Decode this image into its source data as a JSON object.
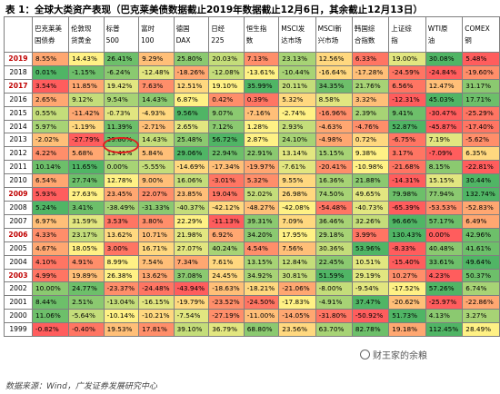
{
  "caption": "表 1：全球大类资产表现（巴克莱美债数据截止2019年数据截止12月6日，其余截止12月13日）",
  "source_note": "数据来源：Wind，广发证券发展研究中心",
  "watermark": "财王家的余粮",
  "columns": [
    {
      "id": "bbg",
      "lines": [
        "巴克莱美",
        "国债券"
      ]
    },
    {
      "id": "lehman",
      "lines": [
        "伦敦现",
        "货黄金"
      ]
    },
    {
      "id": "sp500",
      "lines": [
        "标普",
        "500"
      ]
    },
    {
      "id": "nasdaq100",
      "lines": [
        "富时",
        "100"
      ]
    },
    {
      "id": "dax",
      "lines": [
        "德国",
        "DAX"
      ]
    },
    {
      "id": "nikkei",
      "lines": [
        "日经",
        "225"
      ]
    },
    {
      "id": "hsi",
      "lines": [
        "恒生指",
        "数"
      ]
    },
    {
      "id": "msci_em",
      "lines": [
        "MSCI发",
        "达市场"
      ]
    },
    {
      "id": "msci_new",
      "lines": [
        "MSCI新",
        "兴市场"
      ]
    },
    {
      "id": "kospi",
      "lines": [
        "韩国综",
        "合指数"
      ]
    },
    {
      "id": "sse",
      "lines": [
        "上证综",
        "指"
      ]
    },
    {
      "id": "wti",
      "lines": [
        "WTI原",
        "油"
      ]
    },
    {
      "id": "comex",
      "lines": [
        "COMEX",
        "铜"
      ]
    }
  ],
  "rows": [
    {
      "year": "2019",
      "red": true,
      "cells": [
        "8.55%",
        "14.43%",
        "26.41%",
        "9.29%",
        "25.80%",
        "20.03%",
        "7.13%",
        "23.13%",
        "12.56%",
        "6.33%",
        "19.00%",
        "30.08%",
        "5.48%"
      ]
    },
    {
      "year": "2018",
      "red": false,
      "cells": [
        "0.01%",
        "-1.15%",
        "-6.24%",
        "-12.48%",
        "-18.26%",
        "-12.08%",
        "-13.61%",
        "-10.44%",
        "-16.64%",
        "-17.28%",
        "-24.59%",
        "-24.84%",
        "-19.60%"
      ]
    },
    {
      "year": "2017",
      "red": true,
      "cells": [
        "3.54%",
        "11.85%",
        "19.42%",
        "7.63%",
        "12.51%",
        "19.10%",
        "35.99%",
        "20.11%",
        "34.35%",
        "21.76%",
        "6.56%",
        "12.47%",
        "31.17%"
      ]
    },
    {
      "year": "2016",
      "red": false,
      "cells": [
        "2.65%",
        "9.12%",
        "9.54%",
        "14.43%",
        "6.87%",
        "0.42%",
        "0.39%",
        "5.32%",
        "8.58%",
        "3.32%",
        "-12.31%",
        "45.03%",
        "17.71%"
      ]
    },
    {
      "year": "2015",
      "red": false,
      "cells": [
        "0.55%",
        "-11.42%",
        "-0.73%",
        "-4.93%",
        "9.56%",
        "9.07%",
        "-7.16%",
        "-2.74%",
        "-16.96%",
        "2.39%",
        "9.41%",
        "-30.47%",
        "-25.29%"
      ]
    },
    {
      "year": "2014",
      "red": false,
      "cells": [
        "5.97%",
        "-1.19%",
        "11.39%",
        "-2.71%",
        "2.65%",
        "7.12%",
        "1.28%",
        "2.93%",
        "-4.63%",
        "-4.76%",
        "52.87%",
        "-45.87%",
        "-17.40%"
      ]
    },
    {
      "year": "2013",
      "red": false,
      "cells": [
        "-2.02%",
        "-27.79%",
        "29.60%",
        "14.43%",
        "25.48%",
        "56.72%",
        "2.87%",
        "24.10%",
        "-4.98%",
        "0.72%",
        "-6.75%",
        "7.19%",
        "-5.62%"
      ]
    },
    {
      "year": "2012",
      "red": false,
      "cells": [
        "4.22%",
        "5.68%",
        "13.41%",
        "5.84%",
        "29.06%",
        "22.94%",
        "22.91%",
        "13.14%",
        "15.15%",
        "9.38%",
        "3.17%",
        "-7.09%",
        "6.35%"
      ]
    },
    {
      "year": "2011",
      "red": false,
      "cells": [
        "10.14%",
        "11.65%",
        "0.00%",
        "-5.55%",
        "-14.69%",
        "-17.34%",
        "-19.97%",
        "-7.61%",
        "-20.41%",
        "-10.98%",
        "-21.68%",
        "8.15%",
        "-22.81%"
      ]
    },
    {
      "year": "2010",
      "red": false,
      "cells": [
        "6.54%",
        "27.74%",
        "12.78%",
        "9.00%",
        "16.06%",
        "-3.01%",
        "5.32%",
        "9.55%",
        "16.36%",
        "21.88%",
        "-14.31%",
        "15.15%",
        "30.44%"
      ]
    },
    {
      "year": "2009",
      "red": true,
      "cells": [
        "5.93%",
        "27.63%",
        "23.45%",
        "22.07%",
        "23.85%",
        "19.04%",
        "52.02%",
        "26.98%",
        "74.50%",
        "49.65%",
        "79.98%",
        "77.94%",
        "132.74%"
      ]
    },
    {
      "year": "2008",
      "red": false,
      "cells": [
        "5.24%",
        "3.41%",
        "-38.49%",
        "-31.33%",
        "-40.37%",
        "-42.12%",
        "-48.27%",
        "-42.08%",
        "-54.48%",
        "-40.73%",
        "-65.39%",
        "-53.53%",
        "-52.83%"
      ]
    },
    {
      "year": "2007",
      "red": false,
      "cells": [
        "6.97%",
        "31.59%",
        "3.53%",
        "3.80%",
        "22.29%",
        "-11.13%",
        "39.31%",
        "7.09%",
        "36.46%",
        "32.26%",
        "96.66%",
        "57.17%",
        "6.49%"
      ]
    },
    {
      "year": "2006",
      "red": true,
      "cells": [
        "4.33%",
        "23.17%",
        "13.62%",
        "10.71%",
        "21.98%",
        "6.92%",
        "34.20%",
        "17.95%",
        "29.18%",
        "3.99%",
        "130.43%",
        "0.00%",
        "42.96%"
      ]
    },
    {
      "year": "2005",
      "red": false,
      "cells": [
        "4.67%",
        "18.05%",
        "3.00%",
        "16.71%",
        "27.07%",
        "40.24%",
        "4.54%",
        "7.56%",
        "30.36%",
        "53.96%",
        "-8.33%",
        "40.48%",
        "41.61%"
      ]
    },
    {
      "year": "2004",
      "red": false,
      "cells": [
        "4.10%",
        "4.91%",
        "8.99%",
        "7.54%",
        "7.34%",
        "7.61%",
        "13.15%",
        "12.84%",
        "22.45%",
        "10.51%",
        "-15.40%",
        "33.61%",
        "49.64%"
      ]
    },
    {
      "year": "2003",
      "red": true,
      "cells": [
        "4.99%",
        "19.89%",
        "26.38%",
        "13.62%",
        "37.08%",
        "24.45%",
        "34.92%",
        "30.81%",
        "51.59%",
        "29.19%",
        "10.27%",
        "4.23%",
        "50.37%"
      ]
    },
    {
      "year": "2002",
      "red": false,
      "cells": [
        "10.00%",
        "24.77%",
        "-23.37%",
        "-24.48%",
        "-43.94%",
        "-18.63%",
        "-18.21%",
        "-21.06%",
        "-8.00%",
        "-9.54%",
        "-17.52%",
        "57.26%",
        "6.74%"
      ]
    },
    {
      "year": "2001",
      "red": false,
      "cells": [
        "8.44%",
        "2.51%",
        "-13.04%",
        "-16.15%",
        "-19.79%",
        "-23.52%",
        "-24.50%",
        "-17.83%",
        "-4.91%",
        "37.47%",
        "-20.62%",
        "-25.97%",
        "-22.86%"
      ]
    },
    {
      "year": "2000",
      "red": false,
      "cells": [
        "11.06%",
        "-5.64%",
        "-10.14%",
        "-10.21%",
        "-7.54%",
        "-27.19%",
        "-11.00%",
        "-14.05%",
        "-31.80%",
        "-50.92%",
        "51.73%",
        "4.13%",
        "3.27%"
      ]
    },
    {
      "year": "1999",
      "red": false,
      "cells": [
        "-0.82%",
        "-0.40%",
        "19.53%",
        "17.81%",
        "39.10%",
        "36.79%",
        "68.80%",
        "23.56%",
        "63.70%",
        "82.78%",
        "19.18%",
        "112.45%",
        "28.49%"
      ]
    }
  ],
  "color_scale": {
    "low": "#ff4040",
    "mid": "#ffee70",
    "high": "#31a84a"
  }
}
